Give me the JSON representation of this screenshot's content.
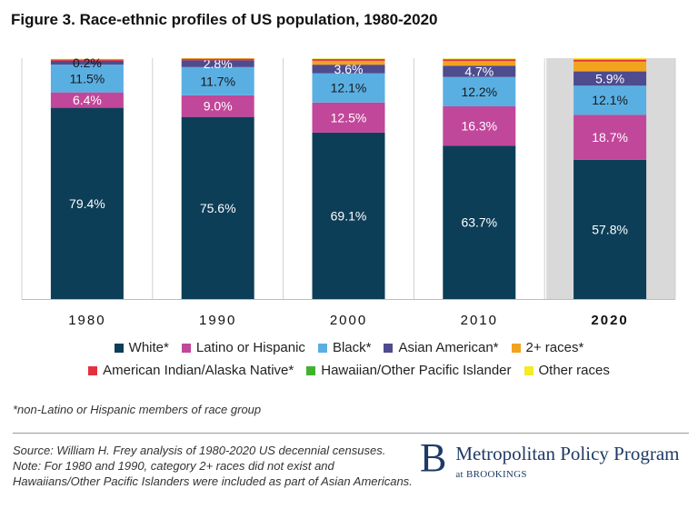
{
  "title": "Figure 3. Race-ethnic profiles of US population, 1980-2020",
  "chart_data": {
    "type": "bar",
    "stacked": true,
    "categories": [
      "1980",
      "1990",
      "2000",
      "2010",
      "2020"
    ],
    "highlight_category": "2020",
    "ylim": [
      0,
      100
    ],
    "series": [
      {
        "name": "White*",
        "color": "#0d3e58",
        "values": [
          79.4,
          75.6,
          69.1,
          63.7,
          57.8
        ],
        "labels": [
          "79.4%",
          "75.6%",
          "69.1%",
          "63.7%",
          "57.8%"
        ]
      },
      {
        "name": "Latino or Hispanic",
        "color": "#c1479a",
        "values": [
          6.4,
          9.0,
          12.5,
          16.3,
          18.7
        ],
        "labels": [
          "6.4%",
          "9.0%",
          "12.5%",
          "16.3%",
          "18.7%"
        ]
      },
      {
        "name": "Black*",
        "color": "#5aafe2",
        "values": [
          11.5,
          11.7,
          12.1,
          12.2,
          12.1
        ],
        "labels": [
          "11.5%",
          "11.7%",
          "12.1%",
          "12.2%",
          "12.1%"
        ]
      },
      {
        "name": "Asian American*",
        "color": "#4e4b8f",
        "values": [
          1.6,
          2.8,
          3.6,
          4.7,
          5.9
        ],
        "labels": [
          "",
          "2.8%",
          "3.6%",
          "4.7%",
          "5.9%"
        ]
      },
      {
        "name": "2+ races*",
        "color": "#f2a31d",
        "values": [
          0,
          0,
          1.6,
          1.9,
          4.1
        ],
        "labels": [
          "",
          "",
          "",
          "",
          ""
        ]
      },
      {
        "name": "American Indian/Alaska Native*",
        "color": "#e3323f",
        "values": [
          0.6,
          0.7,
          0.7,
          0.7,
          0.7
        ],
        "labels": [
          "",
          "",
          "",
          "",
          ""
        ]
      },
      {
        "name": "Hawaiian/Other Pacific Islander",
        "color": "#43b12e",
        "values": [
          0,
          0,
          0.1,
          0.2,
          0.2
        ],
        "labels": [
          "",
          "",
          "",
          "",
          ""
        ]
      },
      {
        "name": "Other races",
        "color": "#f5ea24",
        "values": [
          0.2,
          0.2,
          0.2,
          0.2,
          0.5
        ],
        "labels": [
          "0.2%",
          "",
          "",
          "",
          ""
        ]
      }
    ]
  },
  "footnote": "*non-Latino or Hispanic members of race group",
  "source": "Source: William H. Frey analysis of 1980-2020 US decennial censuses. Note: For 1980 and 1990, category 2+ races did not exist and Hawaiians/Other Pacific Islanders were included as part of Asian Americans.",
  "logo": {
    "letter": "B",
    "name": "Metropolitan Policy Program",
    "sub": "at BROOKINGS"
  }
}
